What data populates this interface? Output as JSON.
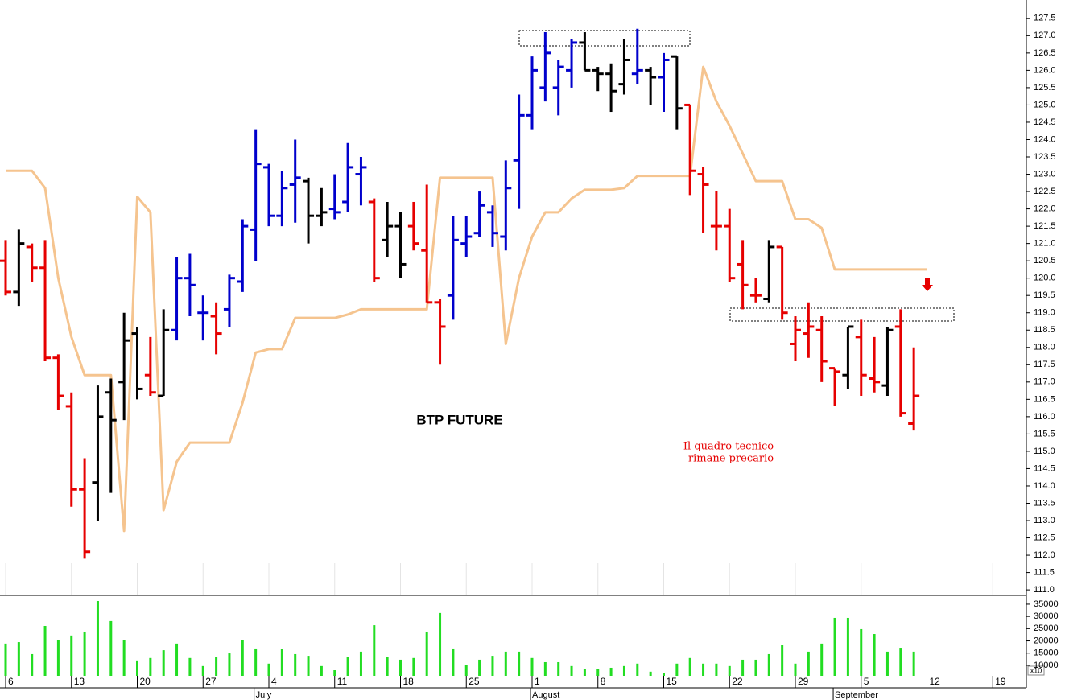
{
  "chart_data": {
    "type": "ohlc",
    "title": "BTP FUTURE",
    "annotation": [
      "Il quadro tecnico",
      "rimane precario"
    ],
    "categories": [
      "6",
      null,
      null,
      null,
      null,
      "13",
      null,
      null,
      null,
      null,
      "20",
      null,
      null,
      null,
      null,
      "27",
      null,
      null,
      null,
      null,
      "4",
      null,
      null,
      null,
      null,
      "11",
      null,
      null,
      null,
      null,
      "18",
      null,
      null,
      null,
      null,
      "25",
      null,
      null,
      null,
      null,
      "1",
      null,
      null,
      null,
      null,
      "8",
      null,
      null,
      null,
      null,
      "15",
      null,
      null,
      null,
      null,
      "22",
      null,
      null,
      null,
      null,
      "29",
      null,
      null,
      null,
      null,
      "5",
      null,
      null,
      null,
      null,
      "12",
      null,
      null,
      null,
      null,
      "19",
      null,
      null
    ],
    "month_labels": [
      null,
      null,
      null,
      null,
      null,
      null,
      null,
      null,
      null,
      null,
      null,
      null,
      null,
      null,
      null,
      null,
      null,
      null,
      null,
      "July",
      null,
      null,
      null,
      null,
      null,
      null,
      null,
      null,
      null,
      null,
      null,
      null,
      null,
      null,
      null,
      null,
      null,
      null,
      null,
      null,
      "August",
      null,
      null,
      null,
      null,
      null,
      null,
      null,
      null,
      null,
      null,
      null,
      null,
      null,
      null,
      null,
      null,
      null,
      null,
      null,
      null,
      null,
      null,
      "September",
      null,
      null,
      null,
      null,
      null,
      null,
      null,
      null,
      null,
      null,
      null,
      null,
      null,
      null
    ],
    "open": [
      120.5,
      119.6,
      120.9,
      120.3,
      117.7,
      116.3,
      113.9,
      114.1,
      116.7,
      117.0,
      118.4,
      117.2,
      116.6,
      118.5,
      120.0,
      119.0,
      118.9,
      119.1,
      119.9,
      121.4,
      123.2,
      121.8,
      122.7,
      122.8,
      121.8,
      122.0,
      122.2,
      123.0,
      122.2,
      121.1,
      121.5,
      121.5,
      120.8,
      119.3,
      119.5,
      121.0,
      121.3,
      121.9,
      121.2,
      123.4,
      124.7,
      125.5,
      125.5,
      126.0,
      126.8,
      126.0,
      125.9,
      125.6,
      125.9,
      126.0,
      125.8,
      126.4,
      125.0,
      123.0,
      121.5,
      121.5,
      120.4,
      119.5,
      119.4,
      120.9,
      118.1,
      118.4,
      118.5,
      117.4,
      117.2,
      118.3,
      117.1,
      116.9,
      118.6,
      115.8,
      null,
      null,
      null,
      null,
      null,
      null,
      null,
      null
    ],
    "high": [
      121.1,
      121.4,
      121.0,
      121.1,
      117.8,
      116.7,
      114.8,
      116.9,
      117.1,
      119.0,
      118.6,
      118.3,
      119.1,
      120.6,
      120.7,
      119.5,
      119.3,
      120.1,
      121.7,
      124.3,
      123.3,
      123.1,
      124.0,
      122.9,
      122.6,
      123.0,
      123.9,
      123.5,
      122.3,
      122.2,
      121.9,
      122.2,
      122.7,
      119.4,
      121.8,
      121.8,
      122.5,
      122.1,
      123.4,
      125.3,
      126.4,
      127.1,
      126.3,
      126.9,
      127.1,
      126.1,
      126.2,
      126.9,
      127.2,
      126.1,
      126.5,
      126.4,
      125.0,
      123.2,
      122.5,
      122.0,
      121.1,
      120.0,
      121.1,
      120.9,
      118.9,
      119.3,
      118.9,
      117.4,
      118.6,
      118.8,
      118.3,
      118.6,
      119.1,
      118.0,
      null,
      null,
      null,
      null,
      null,
      null,
      null,
      null
    ],
    "low": [
      119.5,
      119.2,
      119.9,
      117.6,
      116.2,
      113.4,
      111.9,
      113.0,
      113.8,
      115.9,
      116.5,
      116.6,
      116.6,
      118.2,
      118.9,
      118.2,
      117.8,
      118.6,
      119.6,
      120.5,
      121.5,
      121.5,
      121.6,
      121.0,
      121.5,
      121.7,
      121.9,
      122.1,
      119.9,
      120.6,
      120.0,
      120.8,
      119.3,
      117.5,
      118.8,
      120.6,
      121.2,
      120.9,
      120.8,
      122.0,
      124.3,
      125.1,
      124.7,
      125.5,
      126.0,
      125.4,
      124.8,
      125.3,
      125.6,
      125.0,
      124.8,
      124.3,
      122.4,
      121.3,
      120.8,
      119.9,
      119.1,
      119.3,
      119.3,
      118.8,
      117.6,
      117.7,
      117.0,
      116.3,
      116.8,
      116.6,
      116.7,
      116.6,
      116.0,
      115.6,
      null,
      null,
      null,
      null,
      null,
      null,
      null,
      null
    ],
    "close": [
      119.6,
      121.0,
      120.3,
      117.7,
      116.6,
      113.9,
      112.1,
      116.0,
      115.9,
      118.2,
      116.8,
      116.7,
      118.5,
      120.0,
      119.8,
      119.0,
      118.4,
      120.0,
      121.5,
      123.3,
      121.8,
      122.6,
      122.9,
      121.8,
      121.9,
      121.9,
      123.2,
      123.2,
      120.0,
      121.5,
      120.4,
      121.0,
      119.3,
      118.6,
      121.1,
      121.2,
      122.1,
      121.3,
      122.6,
      124.7,
      126.0,
      126.5,
      126.1,
      126.8,
      126.0,
      125.9,
      125.4,
      126.3,
      126.0,
      125.8,
      126.3,
      124.9,
      123.1,
      122.7,
      121.5,
      120.0,
      119.8,
      119.5,
      120.9,
      119.0,
      118.5,
      118.6,
      117.6,
      117.3,
      118.6,
      117.2,
      117.0,
      118.5,
      116.1,
      116.6,
      null,
      null,
      null,
      null,
      null,
      null,
      null,
      null
    ],
    "bar_colors": [
      "#e60000",
      "#000000",
      "#e60000",
      "#e60000",
      "#e60000",
      "#e60000",
      "#e60000",
      "#000000",
      "#000000",
      "#000000",
      "#000000",
      "#e60000",
      "#000000",
      "#0000cc",
      "#0000cc",
      "#0000cc",
      "#e60000",
      "#0000cc",
      "#0000cc",
      "#0000cc",
      "#0000cc",
      "#0000cc",
      "#0000cc",
      "#000000",
      "#000000",
      "#0000cc",
      "#0000cc",
      "#0000cc",
      "#e60000",
      "#000000",
      "#000000",
      "#e60000",
      "#e60000",
      "#e60000",
      "#0000cc",
      "#0000cc",
      "#0000cc",
      "#0000cc",
      "#0000cc",
      "#0000cc",
      "#0000cc",
      "#0000cc",
      "#0000cc",
      "#0000cc",
      "#000000",
      "#000000",
      "#000000",
      "#000000",
      "#0000cc",
      "#000000",
      "#0000cc",
      "#000000",
      "#e60000",
      "#e60000",
      "#e60000",
      "#e60000",
      "#e60000",
      "#e60000",
      "#000000",
      "#e60000",
      "#e60000",
      "#e60000",
      "#e60000",
      "#e60000",
      "#000000",
      "#e60000",
      "#e60000",
      "#000000",
      "#e60000",
      "#e60000",
      null,
      null,
      null,
      null,
      null,
      null,
      null,
      null
    ],
    "line": {
      "color": "#f5c48f",
      "values": [
        123.1,
        123.1,
        123.1,
        122.6,
        120.0,
        118.3,
        117.2,
        117.2,
        117.2,
        112.7,
        122.35,
        121.9,
        113.3,
        114.7,
        115.25,
        115.25,
        115.25,
        115.25,
        116.4,
        117.85,
        117.95,
        117.95,
        118.85,
        118.85,
        118.85,
        118.85,
        118.95,
        119.1,
        119.1,
        119.1,
        119.1,
        119.1,
        119.1,
        122.9,
        122.9,
        122.9,
        122.9,
        122.9,
        118.1,
        120.0,
        121.2,
        121.9,
        121.9,
        122.3,
        122.55,
        122.55,
        122.55,
        122.6,
        122.95,
        122.95,
        122.95,
        122.95,
        122.95,
        126.1,
        125.1,
        124.4,
        123.6,
        122.8,
        122.8,
        122.8,
        121.7,
        121.7,
        121.45,
        120.25,
        120.25,
        120.25,
        120.25,
        120.25,
        120.25,
        120.25,
        120.25,
        null,
        null,
        null,
        null,
        null,
        null,
        null
      ]
    },
    "ylim": [
      110.84,
      128.03
    ],
    "yticks": [
      {
        "value": 111,
        "label": "111.0"
      },
      111.5,
      {
        "value": 112,
        "label": "112.0"
      },
      112.5,
      {
        "value": 113,
        "label": "113.0"
      },
      113.5,
      {
        "value": 114,
        "label": "114.0"
      },
      114.5,
      {
        "value": 115,
        "label": "115.0"
      },
      115.5,
      {
        "value": 116,
        "label": "116.0"
      },
      116.5,
      {
        "value": 117,
        "label": "117.0"
      },
      117.5,
      {
        "value": 118,
        "label": "118.0"
      },
      118.5,
      {
        "value": 119,
        "label": "119.0"
      },
      119.5,
      {
        "value": 120,
        "label": "120.0"
      },
      120.5,
      {
        "value": 121,
        "label": "121.0"
      },
      121.5,
      {
        "value": 122,
        "label": "122.0"
      },
      122.5,
      {
        "value": 123,
        "label": "123.0"
      },
      123.5,
      {
        "value": 124,
        "label": "124.0"
      },
      124.5,
      {
        "value": 125,
        "label": "125.0"
      },
      125.5,
      {
        "value": 126,
        "label": "126.0"
      },
      126.5,
      {
        "value": 127,
        "label": "127.0"
      },
      127.5
    ],
    "volume": {
      "color": "#22dd22",
      "note": "x10",
      "values": [
        18900,
        19500,
        14600,
        26100,
        20200,
        22200,
        23800,
        36300,
        28100,
        20500,
        12000,
        13000,
        16200,
        18900,
        13000,
        9700,
        13300,
        14900,
        20200,
        16900,
        10700,
        16600,
        14600,
        13900,
        9700,
        8000,
        13300,
        15600,
        26400,
        13300,
        12300,
        13000,
        23800,
        31400,
        16900,
        10000,
        12300,
        13900,
        15600,
        15600,
        13000,
        11300,
        11300,
        9700,
        8400,
        8400,
        9000,
        9700,
        10700,
        7400,
        6800,
        10700,
        13000,
        10700,
        10700,
        9700,
        12300,
        12300,
        14600,
        18200,
        10700,
        15600,
        18900,
        29400,
        29400,
        24800,
        22800,
        15600,
        17200,
        15600,
        null,
        null,
        null,
        null,
        null,
        null,
        null,
        null
      ],
      "ylim": [
        5700,
        38600
      ],
      "yticks": [
        10000,
        15000,
        20000,
        25000,
        30000,
        35000
      ]
    }
  }
}
